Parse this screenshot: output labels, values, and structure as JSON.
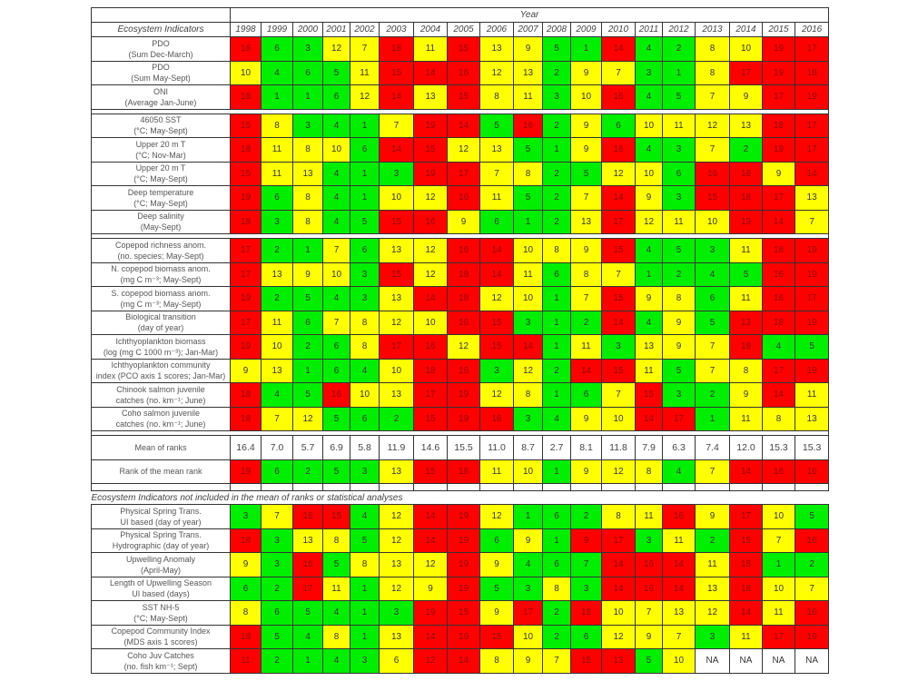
{
  "header": {
    "year_label": "Year",
    "indicators_label": "Ecosystem Indicators",
    "years": [
      "1998",
      "1999",
      "2000",
      "2001",
      "2002",
      "2003",
      "2004",
      "2005",
      "2006",
      "2007",
      "2008",
      "2009",
      "2010",
      "2011",
      "2012",
      "2013",
      "2014",
      "2015",
      "2016"
    ]
  },
  "colors": {
    "R": "#ff0000",
    "G": "#00ee00",
    "Y": "#ffff00",
    "W": "#ffffff",
    "text_on_red": "#8b0000"
  },
  "groups": [
    {
      "rows": [
        {
          "line1": "PDO",
          "line2": "(Sum Dec-March)",
          "values": [
            "16",
            "6",
            "3",
            "12",
            "7",
            "18",
            "11",
            "15",
            "13",
            "9",
            "5",
            "1",
            "14",
            "4",
            "2",
            "8",
            "10",
            "19",
            "17"
          ],
          "colors": "RGGYYRYRYYGGRGGYYRR"
        },
        {
          "line1": "PDO",
          "line2": "(Sum May-Sept)",
          "values": [
            "10",
            "4",
            "6",
            "5",
            "11",
            "15",
            "14",
            "16",
            "12",
            "13",
            "2",
            "9",
            "7",
            "3",
            "1",
            "8",
            "17",
            "19",
            "18"
          ],
          "colors": "YGGGYRRRYYGYYGGYRRR"
        },
        {
          "line1": "ONI",
          "line2": "(Average Jan-June)",
          "values": [
            "18",
            "1",
            "1",
            "6",
            "12",
            "14",
            "13",
            "15",
            "8",
            "11",
            "3",
            "10",
            "16",
            "4",
            "5",
            "7",
            "9",
            "17",
            "19"
          ],
          "colors": "RGGGYRYRYYGYRGGYYRR"
        }
      ]
    },
    {
      "rows": [
        {
          "line1": "46050 SST",
          "line2": "(°C; May-Sept)",
          "values": [
            "15",
            "8",
            "3",
            "4",
            "1",
            "7",
            "19",
            "14",
            "5",
            "16",
            "2",
            "9",
            "6",
            "10",
            "11",
            "12",
            "13",
            "18",
            "17"
          ],
          "colors": "RYGGGYRRGRGYGYYYYRR"
        },
        {
          "line1": "Upper 20 m T",
          "line2": "(°C; Nov-Mar)",
          "values": [
            "18",
            "11",
            "8",
            "10",
            "6",
            "14",
            "15",
            "12",
            "13",
            "5",
            "1",
            "9",
            "16",
            "4",
            "3",
            "7",
            "2",
            "19",
            "17"
          ],
          "colors": "RYYYGRRYYGGYRGGYGRR"
        },
        {
          "line1": "Upper 20 m T",
          "line2": "(°C; May-Sept)",
          "values": [
            "15",
            "11",
            "13",
            "4",
            "1",
            "3",
            "19",
            "17",
            "7",
            "8",
            "2",
            "5",
            "12",
            "10",
            "6",
            "16",
            "18",
            "9",
            "14"
          ],
          "colors": "RYYGGGRRYYGGYYGRRYR"
        },
        {
          "line1": "Deep temperature",
          "line2": "(°C; May-Sept)",
          "values": [
            "19",
            "6",
            "8",
            "4",
            "1",
            "10",
            "12",
            "16",
            "11",
            "5",
            "2",
            "7",
            "14",
            "9",
            "3",
            "15",
            "18",
            "17",
            "13"
          ],
          "colors": "RGYGGYYRYGGYRYGRRRY"
        },
        {
          "line1": "Deep salinity",
          "line2": "(May-Sept)",
          "values": [
            "18",
            "3",
            "8",
            "4",
            "5",
            "15",
            "16",
            "9",
            "6",
            "1",
            "2",
            "13",
            "17",
            "12",
            "11",
            "10",
            "19",
            "14",
            "7"
          ],
          "colors": "RGYGGRRYGGGYRYYYRRY"
        }
      ]
    },
    {
      "rows": [
        {
          "line1": "Copepod richness anom.",
          "line2": "(no. species; May-Sept)",
          "values": [
            "17",
            "2",
            "1",
            "7",
            "6",
            "13",
            "12",
            "16",
            "14",
            "10",
            "8",
            "9",
            "15",
            "4",
            "5",
            "3",
            "11",
            "18",
            "19"
          ],
          "colors": "RGGYGYYRRYYYRGGGYRR"
        },
        {
          "line1": "N. copepod biomass anom.",
          "line2": "(mg C m⁻³; May-Sept)",
          "values": [
            "17",
            "13",
            "9",
            "10",
            "3",
            "15",
            "12",
            "18",
            "14",
            "11",
            "6",
            "8",
            "7",
            "1",
            "2",
            "4",
            "5",
            "16",
            "19"
          ],
          "colors": "RYYYGRYRRYGYYGGGGRR"
        },
        {
          "line1": "S. copepod biomass anom.",
          "line2": "(mg C m⁻³; May-Sept)",
          "values": [
            "19",
            "2",
            "5",
            "4",
            "3",
            "13",
            "14",
            "18",
            "12",
            "10",
            "1",
            "7",
            "15",
            "9",
            "8",
            "6",
            "11",
            "16",
            "17"
          ],
          "colors": "RGGGGYRRYYGYRYYGYRR"
        },
        {
          "line1": "Biological transition",
          "line2": "(day of year)",
          "values": [
            "17",
            "11",
            "6",
            "7",
            "8",
            "12",
            "10",
            "16",
            "15",
            "3",
            "1",
            "2",
            "14",
            "4",
            "9",
            "5",
            "13",
            "18",
            "19"
          ],
          "colors": "RYGYYYYRRGGGRGYGRRR"
        },
        {
          "line1": "Ichthyoplankton biomass",
          "line2": "(log (mg C 1000 m⁻³); Jan-Mar)",
          "values": [
            "19",
            "10",
            "2",
            "6",
            "8",
            "17",
            "16",
            "12",
            "15",
            "14",
            "1",
            "11",
            "3",
            "13",
            "9",
            "7",
            "18",
            "4",
            "5"
          ],
          "colors": "RYGGYRRYRRGYGYYYRGG"
        },
        {
          "line1": "Ichthyoplankton community",
          "line2": "index (PCO axis 1 scores; Jan-Mar)",
          "values": [
            "9",
            "13",
            "1",
            "6",
            "4",
            "10",
            "18",
            "16",
            "3",
            "12",
            "2",
            "14",
            "15",
            "11",
            "5",
            "7",
            "8",
            "17",
            "19"
          ],
          "colors": "YYGGGYRRGYGRRYGYYRR"
        },
        {
          "line1": "Chinook salmon juvenile",
          "line2": "catches (no. km⁻¹; June)",
          "values": [
            "18",
            "4",
            "5",
            "16",
            "10",
            "13",
            "17",
            "19",
            "12",
            "8",
            "1",
            "6",
            "7",
            "15",
            "3",
            "2",
            "9",
            "14",
            "11"
          ],
          "colors": "RGGRYYRRYYGGYRGGYRY"
        },
        {
          "line1": "Coho salmon juvenile",
          "line2": "catches (no. km⁻¹; June)",
          "values": [
            "18",
            "7",
            "12",
            "5",
            "6",
            "2",
            "15",
            "19",
            "16",
            "3",
            "4",
            "9",
            "10",
            "14",
            "17",
            "1",
            "11",
            "8",
            "13"
          ],
          "colors": "RYYGGGRRRGGYYRRGYYY"
        }
      ]
    }
  ],
  "mean_of_ranks": {
    "label": "Mean of ranks",
    "values": [
      "16.4",
      "7.0",
      "5.7",
      "6.9",
      "5.8",
      "11.9",
      "14.6",
      "15.5",
      "11.0",
      "8.7",
      "2.7",
      "8.1",
      "11.8",
      "7.9",
      "6.3",
      "7.4",
      "12.0",
      "15.3",
      "15.3"
    ]
  },
  "rank_of_mean": {
    "label": "Rank of the mean rank",
    "values": [
      "19",
      "6",
      "2",
      "5",
      "3",
      "13",
      "15",
      "18",
      "11",
      "10",
      "1",
      "9",
      "12",
      "8",
      "4",
      "7",
      "14",
      "16",
      "16"
    ],
    "colors": "RGGGGYRRYYGYYYGYRRR"
  },
  "excluded": {
    "title": "Ecosystem Indicators not included in the mean of ranks or statistical analyses",
    "rows": [
      {
        "line1": "Physical Spring Trans.",
        "line2": "UI based (day of year)",
        "values": [
          "3",
          "7",
          "18",
          "15",
          "4",
          "12",
          "14",
          "19",
          "12",
          "1",
          "6",
          "2",
          "8",
          "11",
          "16",
          "9",
          "17",
          "10",
          "5"
        ],
        "colors": "GYRRGYRRYGGGYYRYRYG"
      },
      {
        "line1": "Physical Spring Trans.",
        "line2": "Hydrographic (day of year)",
        "values": [
          "18",
          "3",
          "13",
          "8",
          "5",
          "12",
          "14",
          "19",
          "6",
          "9",
          "1",
          "9",
          "17",
          "3",
          "11",
          "2",
          "15",
          "7",
          "16"
        ],
        "colors": "RGYYGYRRGYGRRGYGRYR"
      },
      {
        "line1": "Upwelling Anomaly",
        "line2": "(April-May)",
        "values": [
          "9",
          "3",
          "16",
          "5",
          "8",
          "13",
          "12",
          "19",
          "9",
          "4",
          "6",
          "7",
          "14",
          "16",
          "14",
          "11",
          "18",
          "1",
          "2"
        ],
        "colors": "YGRGYYYRYGGGRRRYRGG"
      },
      {
        "line1": "Length of Upwelling Season",
        "line2": "UI based (days)",
        "values": [
          "6",
          "2",
          "17",
          "11",
          "1",
          "12",
          "9",
          "19",
          "5",
          "3",
          "8",
          "3",
          "14",
          "16",
          "14",
          "13",
          "18",
          "10",
          "7"
        ],
        "colors": "GGRYGYYRGGYGRRRYRYY"
      },
      {
        "line1": "SST NH-5",
        "line2": "(°C; May-Sept)",
        "values": [
          "8",
          "6",
          "5",
          "4",
          "1",
          "3",
          "19",
          "15",
          "9",
          "17",
          "2",
          "18",
          "10",
          "7",
          "13",
          "12",
          "14",
          "11",
          "16"
        ],
        "colors": "YGGGGGRRYRGRYYYYRYR"
      },
      {
        "line1": "Copepod Community Index",
        "line2": "(MDS axis 1 scores)",
        "values": [
          "18",
          "5",
          "4",
          "8",
          "1",
          "13",
          "14",
          "16",
          "15",
          "10",
          "2",
          "6",
          "12",
          "9",
          "7",
          "3",
          "11",
          "17",
          "19"
        ],
        "colors": "RGGYGYRRRYGGYYYGYRR"
      },
      {
        "line1": "Coho Juv Catches",
        "line2": "(no. fish km⁻¹; Sept)",
        "values": [
          "11",
          "2",
          "1",
          "4",
          "3",
          "6",
          "12",
          "14",
          "8",
          "9",
          "7",
          "15",
          "13",
          "5",
          "10",
          "NA",
          "NA",
          "NA",
          "NA"
        ],
        "colors": "RGGGGYRRYYYRRGYWWWW"
      }
    ]
  }
}
